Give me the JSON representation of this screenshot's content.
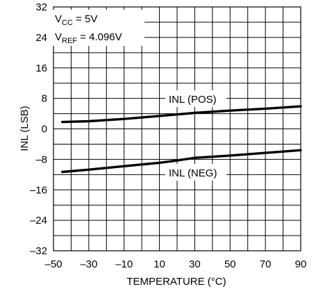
{
  "chart_data": {
    "type": "line",
    "xlabel": "TEMPERATURE (°C)",
    "ylabel": "INL (LSB)",
    "xlim": [
      -50,
      90
    ],
    "ylim": [
      -32,
      32
    ],
    "xticks": [
      "–50",
      "–30",
      "–10",
      "10",
      "30",
      "50",
      "70",
      "90"
    ],
    "yticks": [
      "32",
      "24",
      "16",
      "8",
      "0",
      "–8",
      "–16",
      "–24",
      "–32"
    ],
    "grid": true,
    "conditions": {
      "vcc": {
        "main": "V",
        "sub": "CC",
        "rest": " = 5V"
      },
      "vref": {
        "main": "V",
        "sub": "REF",
        "rest": " = 4.096V"
      }
    },
    "series": [
      {
        "name": "INL (POS)",
        "x": [
          -45,
          -30,
          -10,
          10,
          30,
          50,
          70,
          90
        ],
        "y": [
          1.8,
          2.0,
          2.6,
          3.4,
          4.2,
          4.8,
          5.3,
          5.9
        ]
      },
      {
        "name": "INL (NEG)",
        "x": [
          -45,
          -30,
          -10,
          10,
          20,
          30,
          50,
          70,
          90
        ],
        "y": [
          -11.3,
          -10.7,
          -9.8,
          -8.9,
          -8.3,
          -7.6,
          -7.0,
          -6.3,
          -5.6
        ]
      }
    ]
  }
}
